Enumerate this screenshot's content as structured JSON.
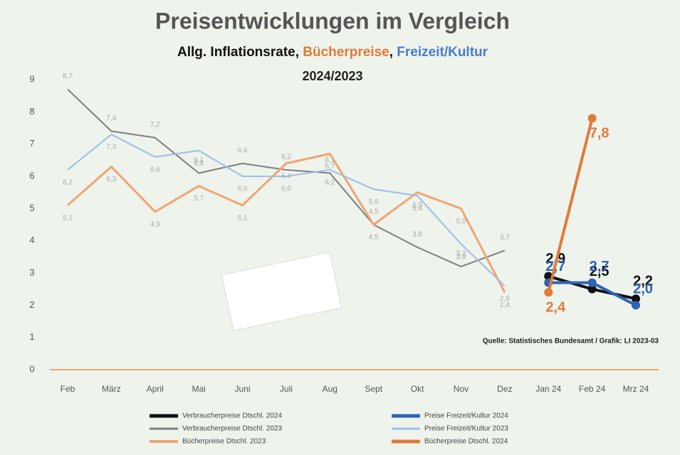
{
  "chart_data": {
    "type": "line",
    "title": "Preisentwicklungen im  Vergleich",
    "subtitle": [
      {
        "text": "Allg. Inflationsrate, ",
        "color": "#111111"
      },
      {
        "text": "Bücherpreise",
        "color": "#e07b39"
      },
      {
        "text": ", ",
        "color": "#111111"
      },
      {
        "text": "Freizeit/Kultur",
        "color": "#4a7cc7"
      }
    ],
    "period": "2024/2023",
    "source": "Quelle: Statistisches Bundesamt / Grafik: LI 2023-03",
    "categories": [
      "Feb",
      "März",
      "April",
      "Mai",
      "Juni",
      "Juli",
      "Aug",
      "Sept",
      "Okt",
      "Nov",
      "Dez",
      "Jan 24",
      "Feb 24",
      "Mrz 24"
    ],
    "ylim": [
      0,
      9
    ],
    "yticks": [
      0,
      1,
      2,
      3,
      4,
      5,
      6,
      7,
      8,
      9
    ],
    "series": [
      {
        "name": "Verbraucherpreise Dtschl. 2024",
        "color": "#111111",
        "width": 4,
        "marker": true,
        "values": [
          null,
          null,
          null,
          null,
          null,
          null,
          null,
          null,
          null,
          null,
          null,
          2.9,
          2.5,
          2.2
        ],
        "value_labels": [
          null,
          null,
          null,
          null,
          null,
          null,
          null,
          null,
          null,
          null,
          null,
          "2,9",
          "2,5",
          "2,2"
        ]
      },
      {
        "name": "Verbraucherpreise Dtschl. 2023",
        "color": "#7f7f7f",
        "width": 2,
        "marker": false,
        "values": [
          8.7,
          7.4,
          7.2,
          6.1,
          6.4,
          6.2,
          6.1,
          4.5,
          3.8,
          3.2,
          3.7,
          null,
          null,
          null
        ],
        "value_labels": [
          "8,7",
          "7,4",
          "7,2",
          "6,1",
          "6,4",
          "6,2",
          "6,1",
          "4,5",
          "3,8",
          "3,2",
          "3,7",
          null,
          null,
          null
        ]
      },
      {
        "name": "Bücherpreise Dtschl. 2023",
        "color": "#f0a572",
        "width": 3,
        "marker": false,
        "values": [
          5.1,
          6.3,
          4.9,
          5.7,
          5.1,
          6.4,
          6.7,
          4.5,
          5.5,
          5.0,
          2.4,
          null,
          null,
          null
        ],
        "value_labels": [
          "5,1",
          "6,3",
          "4,9",
          "5,7",
          "5,1",
          "6,4",
          "6,7",
          "4,5",
          "5,5",
          "5,0",
          "2,4",
          null,
          null,
          null
        ]
      },
      {
        "name": "Preise Freizeit/Kultur 2024",
        "color": "#2f63b8",
        "width": 4,
        "marker": true,
        "values": [
          null,
          null,
          null,
          null,
          null,
          null,
          null,
          null,
          null,
          null,
          null,
          2.7,
          2.7,
          2.0
        ],
        "value_labels": [
          null,
          null,
          null,
          null,
          null,
          null,
          null,
          null,
          null,
          null,
          null,
          "2,7",
          "2,7",
          "2,0"
        ]
      },
      {
        "name": "Preise Freizeit/Kultur 2023",
        "color": "#9dbde8",
        "width": 2,
        "marker": false,
        "values": [
          6.2,
          7.3,
          6.6,
          6.8,
          6.0,
          6.0,
          6.2,
          5.6,
          5.4,
          3.9,
          2.6,
          null,
          null,
          null
        ],
        "value_labels": [
          "6,2",
          "7,3",
          "6,6",
          "6,8",
          "6,0",
          "6,0",
          "6,2",
          "5,6",
          "5,4",
          "3,9",
          "2,6",
          null,
          null,
          null
        ]
      },
      {
        "name": "Bücherpreise Dtschl. 2024",
        "color": "#e07b39",
        "width": 4,
        "marker": true,
        "values": [
          null,
          null,
          null,
          null,
          null,
          null,
          null,
          null,
          null,
          null,
          null,
          2.4,
          7.8,
          null
        ],
        "value_labels": [
          null,
          null,
          null,
          null,
          null,
          null,
          null,
          null,
          null,
          null,
          null,
          "2,4",
          "7,8",
          null
        ]
      }
    ]
  }
}
